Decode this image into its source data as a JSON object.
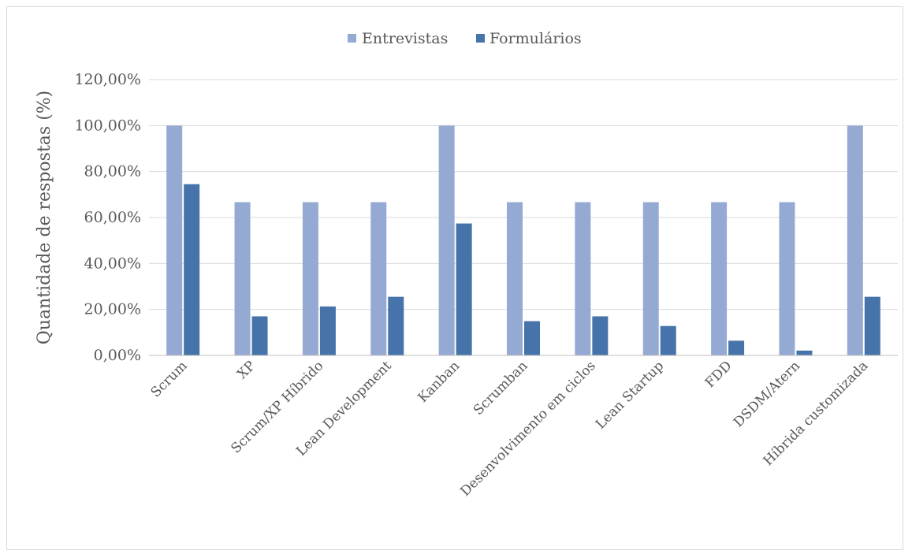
{
  "chart_data": {
    "type": "bar",
    "title": "",
    "xlabel": "",
    "ylabel": "Quantidade de respostas (%)",
    "ylim": [
      0,
      120
    ],
    "y_ticks": [
      "0,00%",
      "20,00%",
      "40,00%",
      "60,00%",
      "80,00%",
      "100,00%",
      "120,00%"
    ],
    "grid": true,
    "legend_position": "top",
    "categories": [
      "Scrum",
      "XP",
      "Scrum/XP Híbrido",
      "Lean Development",
      "Kanban",
      "Scrumban",
      "Desenvolvimento em ciclos",
      "Lean Startup",
      "FDD",
      "DSDM/Atern",
      "Híbrida customizada"
    ],
    "series": [
      {
        "name": "Entrevistas",
        "color": "#95aad3",
        "values": [
          100,
          66.67,
          66.67,
          66.67,
          100,
          66.67,
          66.67,
          66.67,
          66.67,
          66.67,
          100
        ]
      },
      {
        "name": "Formulários",
        "color": "#4674aa",
        "values": [
          74.5,
          17,
          21.3,
          25.5,
          57.4,
          14.9,
          17,
          12.8,
          6.4,
          2.1,
          25.5
        ]
      }
    ]
  }
}
